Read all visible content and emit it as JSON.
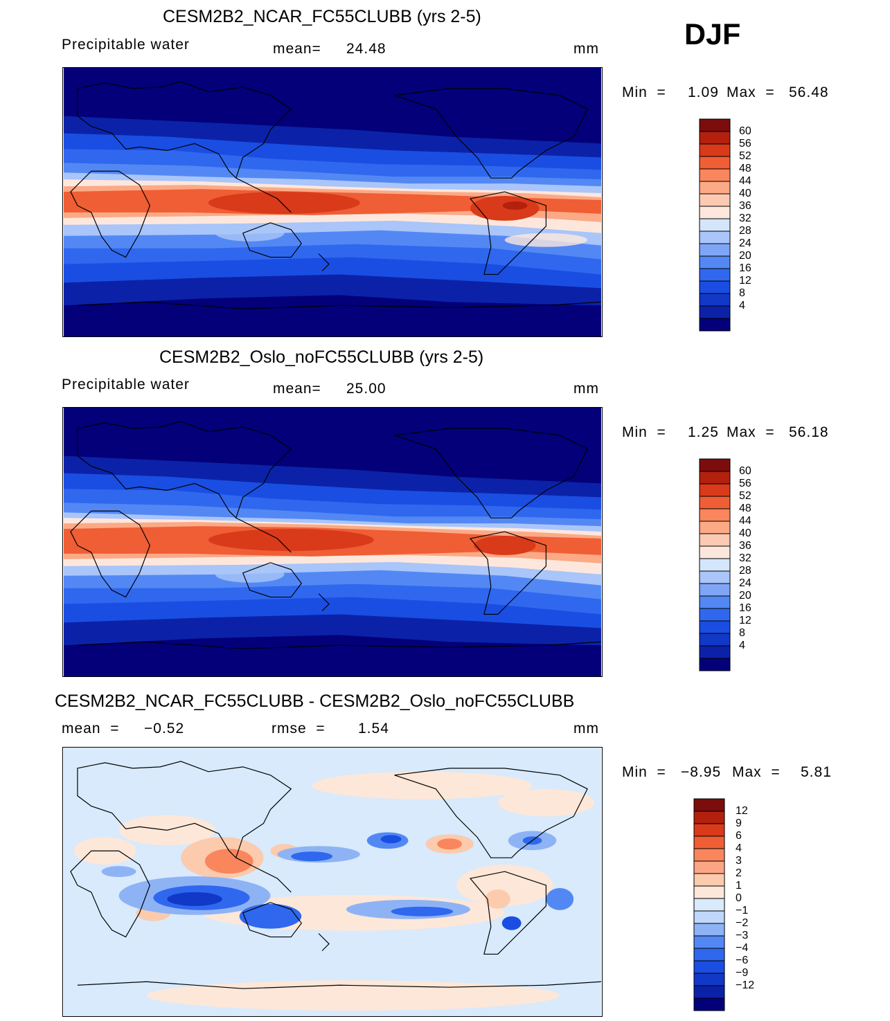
{
  "season": "DJF",
  "palette_full": [
    "#03007a",
    "#0b22a8",
    "#1238c8",
    "#1a4ee2",
    "#2f68ee",
    "#5388f4",
    "#7fa6f6",
    "#a9c5f9",
    "#d4e6fb",
    "#fde7dd",
    "#fcc9b2",
    "#fca986",
    "#f9865d",
    "#ef5e35",
    "#d93a1a",
    "#b3200e",
    "#7c0d0d"
  ],
  "diff_palette": [
    "#03007a",
    "#0b22a8",
    "#1238c8",
    "#1a4ee2",
    "#2f68ee",
    "#5388f4",
    "#8eb3f5",
    "#bed7fa",
    "#d8eafc",
    "#fde7d8",
    "#fccaad",
    "#fca585",
    "#f9865d",
    "#ef5e35",
    "#d93a1a",
    "#b3200e",
    "#7c0d0d"
  ],
  "panels": [
    {
      "title": "CESM2B2_NCAR_FC55CLUBB (yrs 2-5)",
      "variable": "Precipitable  water",
      "stat1_label": "mean=",
      "stat1_value": "24.48",
      "units": "mm",
      "min_label": "Min  =",
      "min_value": "1.09",
      "max_label": "Max  =",
      "max_value": "56.48",
      "levels": [
        "60",
        "56",
        "52",
        "48",
        "44",
        "40",
        "36",
        "32",
        "28",
        "24",
        "20",
        "16",
        "12",
        "8",
        "4"
      ]
    },
    {
      "title": "CESM2B2_Oslo_noFC55CLUBB (yrs 2-5)",
      "variable": "Precipitable  water",
      "stat1_label": "mean=",
      "stat1_value": "25.00",
      "units": "mm",
      "min_label": "Min  =",
      "min_value": "1.25",
      "max_label": "Max  =",
      "max_value": "56.18",
      "levels": [
        "60",
        "56",
        "52",
        "48",
        "44",
        "40",
        "36",
        "32",
        "28",
        "24",
        "20",
        "16",
        "12",
        "8",
        "4"
      ]
    },
    {
      "title": "CESM2B2_NCAR_FC55CLUBB - CESM2B2_Oslo_noFC55CLUBB",
      "stat1_label": "mean  =",
      "stat1_value": "−0.52",
      "stat2_label": "rmse  =",
      "stat2_value": "1.54",
      "units": "mm",
      "min_label": "Min  =",
      "min_value": "−8.95",
      "max_label": "Max  =",
      "max_value": "5.81",
      "levels": [
        "12",
        "9",
        "6",
        "4",
        "3",
        "2",
        "1",
        "0",
        "−1",
        "−2",
        "−3",
        "−4",
        "−6",
        "−9",
        "−12"
      ]
    }
  ]
}
